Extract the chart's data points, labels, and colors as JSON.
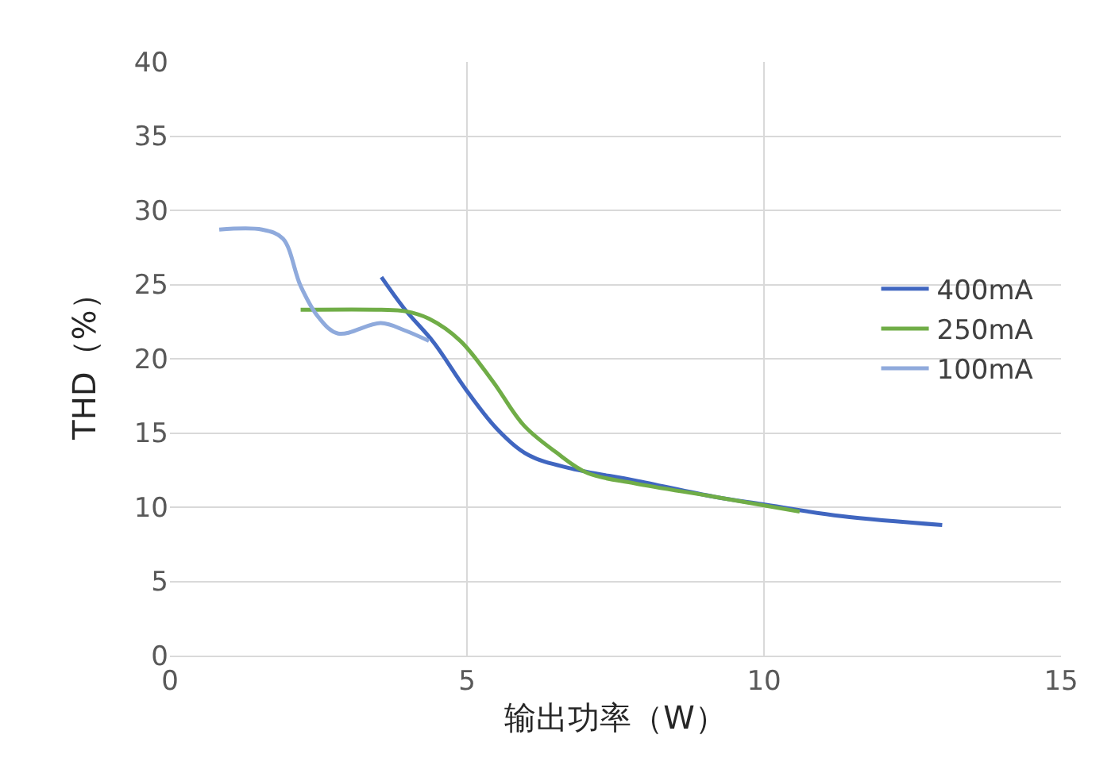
{
  "chart_data": {
    "type": "line",
    "xlabel": "输出功率（W）",
    "ylabel": "THD（%）",
    "xlim": [
      0,
      15
    ],
    "xticks": [
      0,
      5,
      10,
      15
    ],
    "ylim": [
      0,
      40
    ],
    "yticks": [
      0,
      5,
      10,
      15,
      20,
      25,
      30,
      35,
      40
    ],
    "grid": true,
    "legend": "right",
    "marker": "none",
    "line_style": "solid",
    "series": [
      {
        "name": "400mA",
        "color": "#4066c0",
        "x": [
          3.56,
          3.96,
          4.44,
          4.97,
          5.5,
          6.04,
          6.76,
          7.83,
          9.17,
          9.97,
          11.3,
          13.0
        ],
        "values": [
          25.5,
          23.3,
          21.1,
          18.0,
          15.3,
          13.5,
          12.6,
          11.8,
          10.7,
          10.2,
          9.4,
          8.8
        ]
      },
      {
        "name": "250mA",
        "color": "#70ad47",
        "x": [
          2.2,
          3.56,
          3.96,
          4.36,
          4.89,
          5.43,
          5.96,
          6.5,
          7.03,
          7.83,
          9.17,
          10.6
        ],
        "values": [
          23.3,
          23.3,
          23.2,
          22.7,
          21.2,
          18.5,
          15.5,
          13.7,
          12.3,
          11.6,
          10.7,
          9.7
        ]
      },
      {
        "name": "100mA",
        "color": "#8faadc",
        "x": [
          0.83,
          1.55,
          1.9,
          2.2,
          2.5,
          2.83,
          3.55,
          3.96,
          4.36
        ],
        "values": [
          28.7,
          28.7,
          28.1,
          24.9,
          22.8,
          21.7,
          22.4,
          21.9,
          21.2
        ]
      }
    ]
  }
}
